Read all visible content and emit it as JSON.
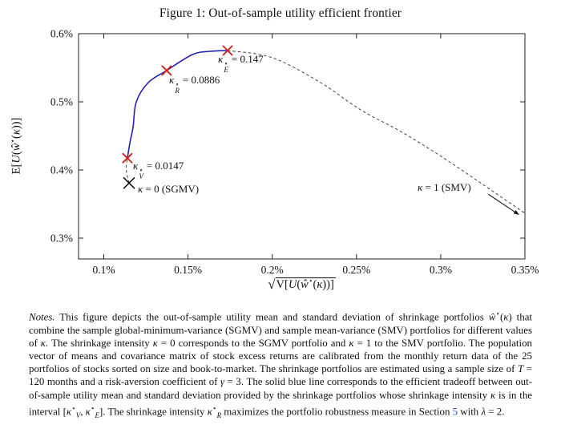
{
  "figure": {
    "title": "Figure 1: Out-of-sample utility efficient frontier"
  },
  "chart_data": {
    "type": "line",
    "title": "Out-of-sample utility efficient frontier",
    "xlabel_plain": "sqrt(V[U(ŵ⋆(κ))])",
    "ylabel_plain": "E[U(ŵ⋆(κ))]",
    "sqrt_symbol": "√",
    "xlabel_inner_segments": [
      [
        "V[",
        ""
      ],
      [
        "U",
        "i"
      ],
      [
        "(",
        ""
      ],
      [
        "ŵ",
        "i"
      ],
      [
        "⋆",
        "sup"
      ],
      [
        "(",
        ""
      ],
      [
        "κ",
        "i"
      ],
      [
        "))]",
        ""
      ]
    ],
    "ylabel_segments": [
      [
        "E[",
        ""
      ],
      [
        "U",
        "i"
      ],
      [
        "(",
        ""
      ],
      [
        "ŵ",
        "i"
      ],
      [
        "⋆",
        "sup"
      ],
      [
        "(",
        ""
      ],
      [
        "κ",
        "i"
      ],
      [
        "))]",
        ""
      ]
    ],
    "x_unit": "percent",
    "y_unit": "percent",
    "xlim": [
      0.085,
      0.35
    ],
    "ylim": [
      0.2694,
      0.6
    ],
    "grid": false,
    "legend": "none",
    "x_ticks": {
      "values": [
        0.1,
        0.15,
        0.2,
        0.25,
        0.3,
        0.35
      ],
      "labels": [
        "0.1%",
        "0.15%",
        "0.2%",
        "0.25%",
        "0.3%",
        "0.35%"
      ]
    },
    "y_ticks": {
      "values": [
        0.3,
        0.4,
        0.5,
        0.6
      ],
      "labels": [
        "0.3%",
        "0.4%",
        "0.5%",
        "0.6%"
      ]
    },
    "series": [
      {
        "name": "sgmv-to-kv-dashed",
        "style": "dashed",
        "color": "#3a3a3a",
        "points": [
          [
            0.115,
            0.3809
          ],
          [
            0.1138,
            0.393
          ],
          [
            0.1133,
            0.4047
          ],
          [
            0.114,
            0.4174
          ]
        ]
      },
      {
        "name": "efficient-frontier-solid",
        "style": "solid",
        "color": "#2121b2",
        "points": [
          [
            0.114,
            0.4174
          ],
          [
            0.1155,
            0.44
          ],
          [
            0.1174,
            0.4635
          ],
          [
            0.1193,
            0.5
          ],
          [
            0.1264,
            0.5282
          ],
          [
            0.1373,
            0.5459
          ],
          [
            0.1526,
            0.5694
          ],
          [
            0.163,
            0.5741
          ],
          [
            0.1735,
            0.5753
          ]
        ]
      },
      {
        "name": "ke-to-smv-dashed",
        "style": "dashed",
        "color": "#3a3a3a",
        "points": [
          [
            0.1735,
            0.5753
          ],
          [
            0.2001,
            0.5647
          ],
          [
            0.2287,
            0.5282
          ],
          [
            0.2525,
            0.4882
          ],
          [
            0.2763,
            0.4565
          ],
          [
            0.301,
            0.4188
          ],
          [
            0.3257,
            0.3776
          ],
          [
            0.35,
            0.3365
          ]
        ]
      }
    ],
    "markers": [
      {
        "name": "sgmv-marker",
        "x": 0.115,
        "y": 0.3809,
        "color": "#000000",
        "shape": "x"
      },
      {
        "name": "kappa-v-marker",
        "x": 0.114,
        "y": 0.4174,
        "color": "#cc2222",
        "shape": "x"
      },
      {
        "name": "kappa-r-marker",
        "x": 0.1373,
        "y": 0.5459,
        "color": "#cc2222",
        "shape": "x"
      },
      {
        "name": "kappa-e-marker",
        "x": 0.1735,
        "y": 0.5753,
        "color": "#cc2222",
        "shape": "x"
      }
    ],
    "annotations": {
      "kE": {
        "sym": "κ",
        "sup": "⋆",
        "sub": "E",
        "eq": "= 0.147"
      },
      "kR": {
        "sym": "κ",
        "sup": "⋆",
        "sub": "R",
        "eq": "= 0.0886"
      },
      "kV": {
        "sym": "κ",
        "sup": "⋆",
        "sub": "V",
        "eq": "= 0.0147"
      },
      "sgmv": {
        "segments": [
          [
            "κ",
            "i"
          ],
          [
            " = 0 (SGMV)",
            ""
          ]
        ]
      },
      "smv": {
        "segments": [
          [
            "κ",
            "i"
          ],
          [
            " = 1 (SMV)",
            ""
          ]
        ]
      }
    }
  },
  "notes": {
    "link_color": "#2746cc",
    "segments": [
      [
        "Notes.",
        "i"
      ],
      [
        " This figure depicts the out-of-sample utility mean and standard deviation of shrinkage portfolios ",
        ""
      ],
      [
        "ŵ",
        "i"
      ],
      [
        "⋆",
        "sup"
      ],
      [
        "(",
        ""
      ],
      [
        "κ",
        "i"
      ],
      [
        ")",
        ""
      ],
      [
        " that combine the sample global-minimum-variance (SGMV) and sample mean-variance (SMV) portfolios for different values of ",
        ""
      ],
      [
        "κ",
        "i"
      ],
      [
        ". The shrinkage intensity ",
        ""
      ],
      [
        "κ",
        "i"
      ],
      [
        " = 0 corresponds to the SGMV portfolio and ",
        ""
      ],
      [
        "κ",
        "i"
      ],
      [
        " = 1 to the SMV portfolio. The population vector of means and covariance matrix of stock excess returns are calibrated from the monthly return data of the 25 portfolios of stocks sorted on size and book-to-market. The shrinkage portfolios are estimated using a sample size of ",
        ""
      ],
      [
        "T",
        "i"
      ],
      [
        " = 120 months and a risk-aversion coefficient of ",
        ""
      ],
      [
        "γ",
        "i"
      ],
      [
        " = 3. The solid blue line corresponds to the efficient tradeoff between out-of-sample utility mean and standard deviation provided by the shrinkage portfolios whose shrinkage intensity ",
        ""
      ],
      [
        "κ",
        "i"
      ],
      [
        " is in the interval [",
        ""
      ],
      [
        "κ",
        "i"
      ],
      [
        "⋆",
        "sup"
      ],
      [
        "V",
        "sub"
      ],
      [
        ", ",
        ""
      ],
      [
        "κ",
        "i"
      ],
      [
        "⋆",
        "sup"
      ],
      [
        "E",
        "sub"
      ],
      [
        "]. The shrinkage intensity ",
        ""
      ],
      [
        "κ",
        "i"
      ],
      [
        "⋆",
        "sup"
      ],
      [
        "R",
        "sub"
      ],
      [
        " maximizes the portfolio robustness measure in Section ",
        ""
      ],
      [
        "5",
        "link"
      ],
      [
        " with ",
        ""
      ],
      [
        "λ",
        "i"
      ],
      [
        " = 2.",
        ""
      ]
    ]
  }
}
